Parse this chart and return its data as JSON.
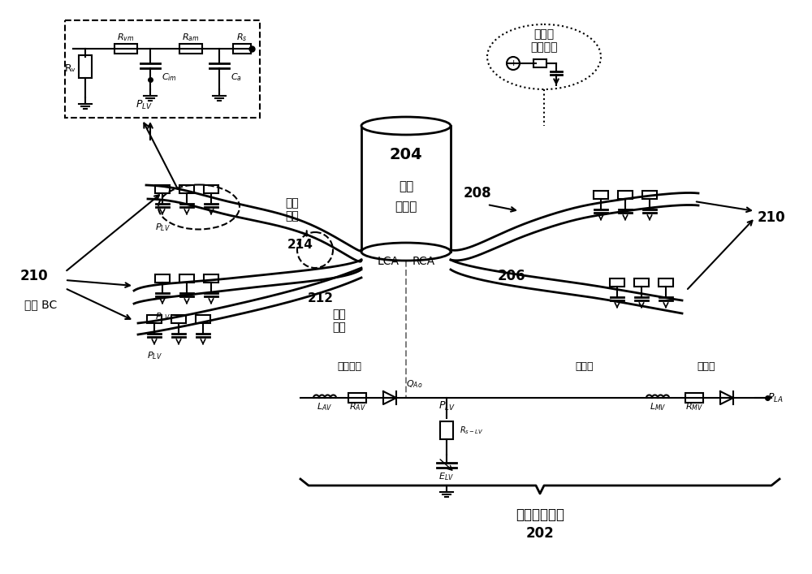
{
  "title": "",
  "bg_color": "#ffffff",
  "text_color": "#000000",
  "fig_width": 10.0,
  "fig_height": 7.07,
  "labels": {
    "systree": "系统树\n降阶模型",
    "aorta_num": "204",
    "aorta_line1": "上升",
    "aorta_line2": "主动脉",
    "lca": "LCA",
    "rca": "RCA",
    "num_208": "208",
    "num_206": "206",
    "num_210_left": "210",
    "num_210_right": "210",
    "num_212": "212",
    "num_214": "214",
    "severe": "严重\n狭窄",
    "mild": "轻微\n狭窄",
    "coronary_bc": "冠状 BC",
    "Rv": "Rᵥ",
    "Rvm": "Rᵥₘ",
    "Ram": "Rₐₘ",
    "Rs": "Rₛ",
    "Cim": "Cᵢₘ",
    "Ca": "Cₐ",
    "PLV_box": "Pₗᵥ",
    "heart_model": "集总心脏模型",
    "num_202": "202",
    "aortic_valve": "主动脉瓣",
    "left_ventricle": "左心室",
    "mitral_valve": "二尖瓣",
    "QAo": "Qₐₒ",
    "PLV_heart": "Pₗᵥ",
    "PLA": "Pₗₐ",
    "LAV": "Lₐᵥ",
    "RAV": "Rₐᵥ",
    "Rs_LV": "Rₛ₋ₗᵥ",
    "ELV": "Eₗᵥ",
    "LMV": "Lₘᵥ",
    "RMV": "Rₘᵥ"
  }
}
